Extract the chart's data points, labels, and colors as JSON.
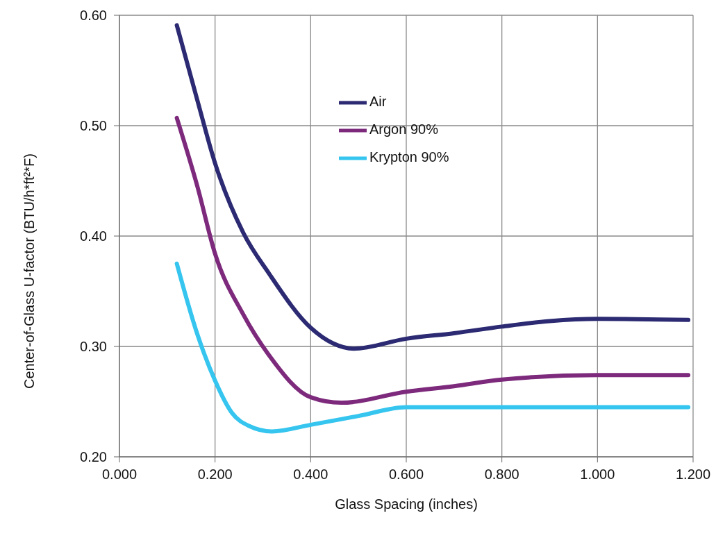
{
  "chart_data": {
    "type": "line",
    "xlabel": "Glass Spacing (inches)",
    "ylabel": "Center-of-Glass U-factor (BTU/h*ft²*F)",
    "xlim": [
      0,
      1.2
    ],
    "ylim": [
      0.2,
      0.6
    ],
    "xticks": [
      {
        "value": 0,
        "label": "0.000"
      },
      {
        "value": 0.2,
        "label": "0.200"
      },
      {
        "value": 0.4,
        "label": "0.400"
      },
      {
        "value": 0.6,
        "label": "0.600"
      },
      {
        "value": 0.8,
        "label": "0.800"
      },
      {
        "value": 1.0,
        "label": "1.000"
      },
      {
        "value": 1.2,
        "label": "1.200"
      }
    ],
    "yticks": [
      {
        "value": 0.2,
        "label": "0.20"
      },
      {
        "value": 0.3,
        "label": "0.30"
      },
      {
        "value": 0.4,
        "label": "0.40"
      },
      {
        "value": 0.5,
        "label": "0.50"
      },
      {
        "value": 0.6,
        "label": "0.60"
      }
    ],
    "grid": true,
    "legend": "top",
    "marker": "none",
    "line_style": "solid",
    "series": [
      {
        "name": "Air",
        "color": "#2b2a72",
        "x": [
          0.12,
          0.163,
          0.2,
          0.259,
          0.313,
          0.4,
          0.446,
          0.49,
          0.6,
          0.7,
          0.8,
          0.9,
          1.0,
          1.19
        ],
        "values": [
          0.591,
          0.523,
          0.466,
          0.403,
          0.366,
          0.317,
          0.303,
          0.298,
          0.307,
          0.312,
          0.318,
          0.323,
          0.325,
          0.324
        ]
      },
      {
        "name": "Argon 90%",
        "color": "#7d2a7c",
        "x": [
          0.12,
          0.163,
          0.2,
          0.259,
          0.313,
          0.4,
          0.464,
          0.6,
          0.7,
          0.8,
          1.0,
          1.19
        ],
        "values": [
          0.507,
          0.445,
          0.384,
          0.329,
          0.292,
          0.254,
          0.249,
          0.259,
          0.264,
          0.27,
          0.274,
          0.274
        ]
      },
      {
        "name": "Krypton 90%",
        "color": "#35c5ef",
        "x": [
          0.12,
          0.163,
          0.2,
          0.235,
          0.271,
          0.319,
          0.4,
          0.5,
          0.6,
          0.8,
          1.0,
          1.19
        ],
        "values": [
          0.375,
          0.311,
          0.269,
          0.24,
          0.228,
          0.223,
          0.229,
          0.237,
          0.245,
          0.245,
          0.245,
          0.245
        ]
      }
    ]
  }
}
